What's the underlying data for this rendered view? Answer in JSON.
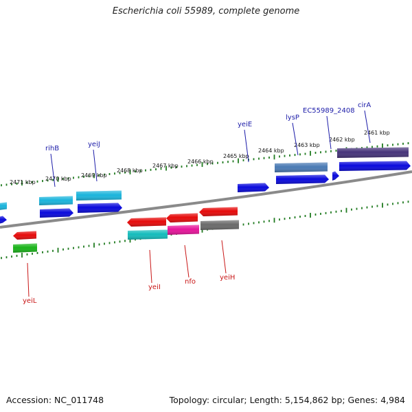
{
  "title": "Escherichia coli 55989, complete genome",
  "footer": {
    "accession": "Accession: NC_011748",
    "summary": "Topology: circular; Length: 5,154,862 bp; Genes: 4,984"
  },
  "map": {
    "kbp_labels": [
      "2471 kbp",
      "2470 kbp",
      "2469 kbp",
      "2468 kbp",
      "2467 kbp",
      "2466 kbp",
      "2465 kbp",
      "2464 kbp",
      "2463 kbp",
      "2462 kbp",
      "2461 kbp"
    ],
    "colors": {
      "backbone": "#8a8a8a",
      "ticks": "#1f7a1f",
      "forward_label": "#1a1aa8",
      "reverse_label": "#c81414",
      "blue": "#0a0adc",
      "cyan": "#1ab4dc",
      "steel": "#4a7ab4",
      "purple": "#46347a",
      "red": "#e60a0a",
      "teal": "#14bcbc",
      "magenta": "#e6149a",
      "gray": "#6a6a6a",
      "green": "#1ab41a"
    },
    "forward_labels": [
      "rihB",
      "yeiJ",
      "yeiE",
      "lysP",
      "EC55989_2408",
      "cirA"
    ],
    "reverse_labels": [
      "yeiL",
      "yeiI",
      "nfo",
      "yeiH"
    ]
  }
}
